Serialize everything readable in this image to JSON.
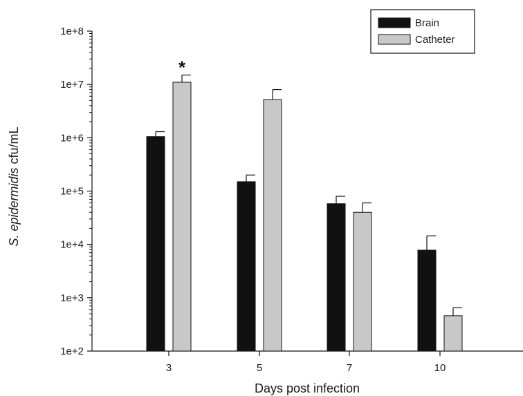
{
  "chart_data": {
    "type": "bar",
    "xlabel": "Days post infection",
    "ylabel_italic": "S. epidermidis",
    "ylabel_rest": " cfu/mL",
    "yscale": "log",
    "ylim": [
      100,
      100000000
    ],
    "yticks": [
      "1e+2",
      "1e+3",
      "1e+4",
      "1e+5",
      "1e+6",
      "1e+7",
      "1e+8"
    ],
    "categories": [
      "3",
      "5",
      "7",
      "10"
    ],
    "legend_placement": "top-right",
    "grid": false,
    "series": [
      {
        "name": "Brain",
        "color": "#111111",
        "values": [
          1050000,
          150000,
          58000,
          7800
        ],
        "errors": [
          1300000,
          200000,
          80000,
          14500
        ]
      },
      {
        "name": "Catheter",
        "color": "#c8c8c8",
        "values": [
          11000000,
          5200000,
          40000,
          460
        ],
        "errors": [
          15000000,
          8000000,
          60000,
          650
        ]
      }
    ],
    "annotations": [
      {
        "category": "3",
        "series": "Catheter",
        "text": "*"
      }
    ]
  }
}
